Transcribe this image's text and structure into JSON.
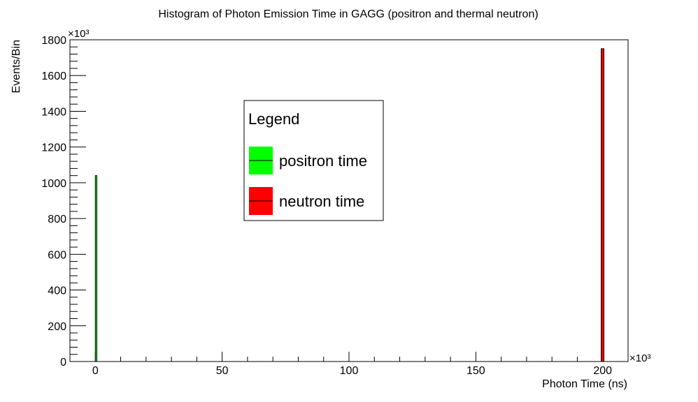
{
  "chart_data": {
    "type": "bar",
    "title": "Histogram of Photon Emission Time in GAGG (positron and thermal neutron)",
    "xlabel": "Photon Time (ns)",
    "ylabel": "Events/Bin",
    "x_multiplier": "×10³",
    "y_multiplier": "×10³",
    "xlim": [
      -10,
      210
    ],
    "ylim": [
      0,
      1800
    ],
    "x_ticks": [
      0,
      50,
      100,
      150,
      200
    ],
    "x_tick_labels": [
      "0",
      "50",
      "100",
      "150",
      "200"
    ],
    "y_ticks": [
      0,
      200,
      400,
      600,
      800,
      1000,
      1200,
      1400,
      1600,
      1800
    ],
    "y_tick_labels": [
      "0",
      "200",
      "400",
      "600",
      "800",
      "1000",
      "1200",
      "1400",
      "1600",
      "1800"
    ],
    "grid": false,
    "legend": {
      "title": "Legend",
      "placement": "center-left"
    },
    "series": [
      {
        "name": "positron time",
        "color": "#00ff00",
        "bars": [
          {
            "x0": 0,
            "x1": 0.6,
            "value": 1040
          }
        ]
      },
      {
        "name": "neutron time",
        "color": "#ff0000",
        "bars": [
          {
            "x0": 199.4,
            "x1": 200.5,
            "value": 1750
          }
        ]
      }
    ]
  }
}
